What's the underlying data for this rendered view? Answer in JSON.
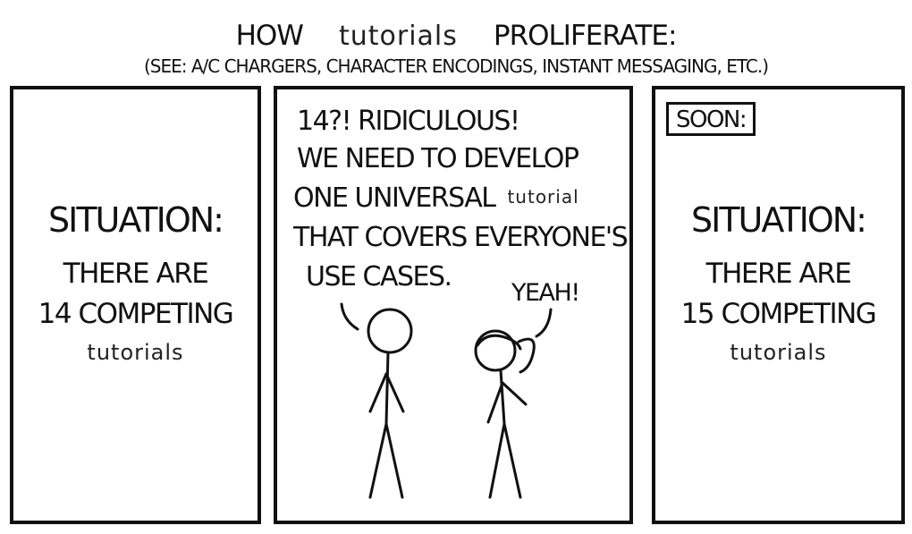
{
  "title": {
    "how": "HOW",
    "typed": "tutorials",
    "proliferate": "PROLIFERATE:"
  },
  "subtitle": "(SEE: A/C CHARGERS, CHARACTER ENCODINGS, INSTANT MESSAGING, ETC.)",
  "panel1": {
    "heading": "SITUATION:",
    "line1": "THERE ARE",
    "line2": "14 COMPETING",
    "typed": "tutorials"
  },
  "panel2": {
    "speech_line1": "14?! RIDICULOUS!",
    "speech_line2": "WE NEED TO DEVELOP",
    "speech_line3": "ONE UNIVERSAL",
    "speech_line3_typed": "tutorial",
    "speech_line4": "THAT COVERS EVERYONE'S",
    "speech_line5": "USE CASES.",
    "reply": "YEAH!"
  },
  "panel3": {
    "soon": "SOON:",
    "heading": "SITUATION:",
    "line1": "THERE ARE",
    "line2": "15 COMPETING",
    "typed": "tutorials"
  }
}
